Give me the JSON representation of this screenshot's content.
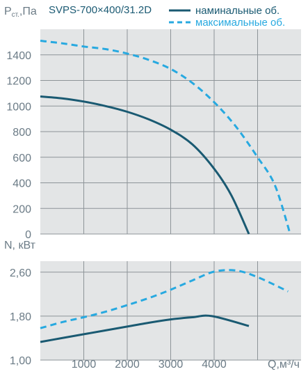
{
  "chart_data": [
    {
      "type": "line",
      "title": "SVPS-700×400/31.2D",
      "ylabel": "Pст.,Па",
      "ylabel_main": "P",
      "ylabel_sub": "ст.",
      "ylabel_unit": ",Па",
      "xlim": [
        0,
        6000
      ],
      "ylim": [
        0,
        1600
      ],
      "yticks": [
        0,
        200,
        400,
        600,
        800,
        1000,
        1200,
        1400
      ],
      "grid": true,
      "legend_position": "top-right",
      "series": [
        {
          "name": "наминальные об.",
          "color": "#1a5a72",
          "style": "solid",
          "x": [
            0,
            500,
            1000,
            1500,
            2000,
            2500,
            3000,
            3500,
            4000,
            4400,
            4800
          ],
          "y": [
            1075,
            1060,
            1035,
            1000,
            955,
            895,
            815,
            700,
            510,
            300,
            0
          ]
        },
        {
          "name": "максимальные об.",
          "color": "#27a9e0",
          "style": "dashed",
          "x": [
            0,
            500,
            1000,
            1500,
            2000,
            2500,
            3000,
            3500,
            4000,
            4500,
            5000,
            5400,
            5750
          ],
          "y": [
            1510,
            1490,
            1465,
            1445,
            1410,
            1360,
            1290,
            1180,
            1030,
            840,
            600,
            380,
            0
          ]
        }
      ]
    },
    {
      "type": "line",
      "ylabel": "N, кВт",
      "xlabel": "Q,м³/ч",
      "xlim": [
        0,
        6000
      ],
      "ylim": [
        1.0,
        2.8
      ],
      "xticks": [
        1000,
        2000,
        3000,
        4000
      ],
      "ytick_labels": [
        "1,00",
        "1,80",
        "2,60"
      ],
      "yticks": [
        1.0,
        1.8,
        2.6
      ],
      "grid": true,
      "series": [
        {
          "name": "наминальные об.",
          "color": "#1a5a72",
          "style": "solid",
          "x": [
            0,
            500,
            1000,
            1500,
            2000,
            2500,
            3000,
            3500,
            3950,
            4800
          ],
          "y": [
            1.33,
            1.4,
            1.47,
            1.54,
            1.61,
            1.68,
            1.74,
            1.78,
            1.8,
            1.62
          ]
        },
        {
          "name": "максимальные об.",
          "color": "#27a9e0",
          "style": "dashed",
          "x": [
            0,
            500,
            1000,
            1500,
            2000,
            2500,
            3000,
            3500,
            4000,
            4500,
            5000,
            5700
          ],
          "y": [
            1.58,
            1.69,
            1.78,
            1.88,
            2.0,
            2.13,
            2.28,
            2.45,
            2.61,
            2.63,
            2.51,
            2.25
          ]
        }
      ]
    }
  ]
}
